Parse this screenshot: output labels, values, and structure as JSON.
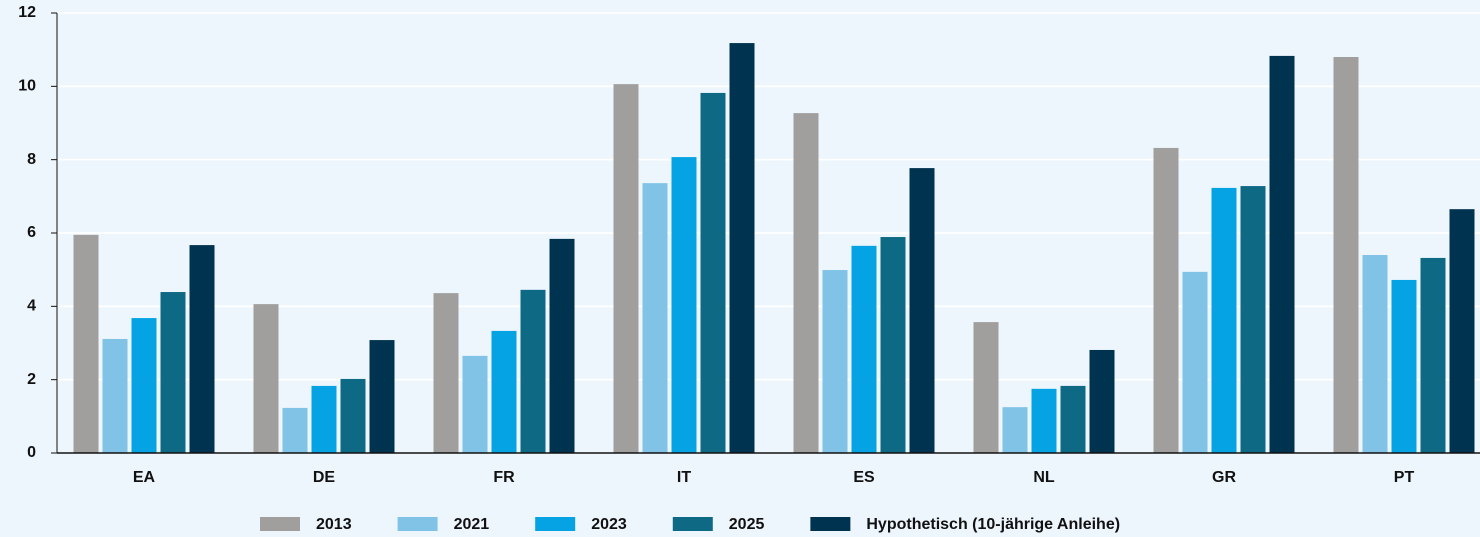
{
  "chart_data": {
    "type": "bar",
    "categories": [
      "EA",
      "DE",
      "FR",
      "IT",
      "ES",
      "NL",
      "GR",
      "PT"
    ],
    "series": [
      {
        "name": "2013",
        "color": "#a09f9d",
        "values": [
          5.95,
          4.06,
          4.36,
          10.06,
          9.27,
          3.57,
          8.32,
          10.8
        ]
      },
      {
        "name": "2021",
        "color": "#80c3e6",
        "values": [
          3.11,
          1.23,
          2.65,
          7.36,
          4.99,
          1.25,
          4.94,
          5.4
        ]
      },
      {
        "name": "2023",
        "color": "#05a2e4",
        "values": [
          3.68,
          1.83,
          3.33,
          8.07,
          5.65,
          1.75,
          7.23,
          4.72
        ]
      },
      {
        "name": "2025",
        "color": "#0e6985",
        "values": [
          4.39,
          2.02,
          4.45,
          9.82,
          5.89,
          1.83,
          7.28,
          5.32
        ]
      },
      {
        "name": "Hypothetisch (10-jährige Anleihe)",
        "color": "#00334f",
        "values": [
          5.67,
          3.08,
          5.84,
          11.18,
          7.77,
          2.81,
          10.83,
          6.65
        ]
      }
    ],
    "ylim": [
      0,
      12
    ],
    "yticks": [
      0,
      2,
      4,
      6,
      8,
      10,
      12
    ],
    "grid": true,
    "legend": "bottom"
  }
}
